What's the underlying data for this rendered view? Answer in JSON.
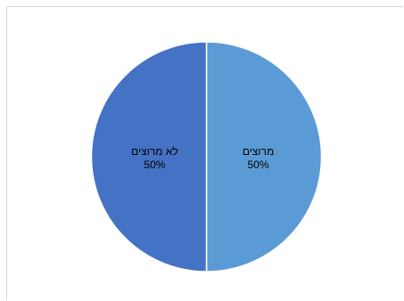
{
  "chart_data": {
    "type": "pie",
    "slices": [
      {
        "label": "מרוצים",
        "value": 50,
        "value_label": "50%",
        "color": "#5b9bd5"
      },
      {
        "label": "לא מרוצים",
        "value": 50,
        "value_label": "50%",
        "color": "#4472c4"
      }
    ],
    "title": "",
    "legend": "none"
  }
}
